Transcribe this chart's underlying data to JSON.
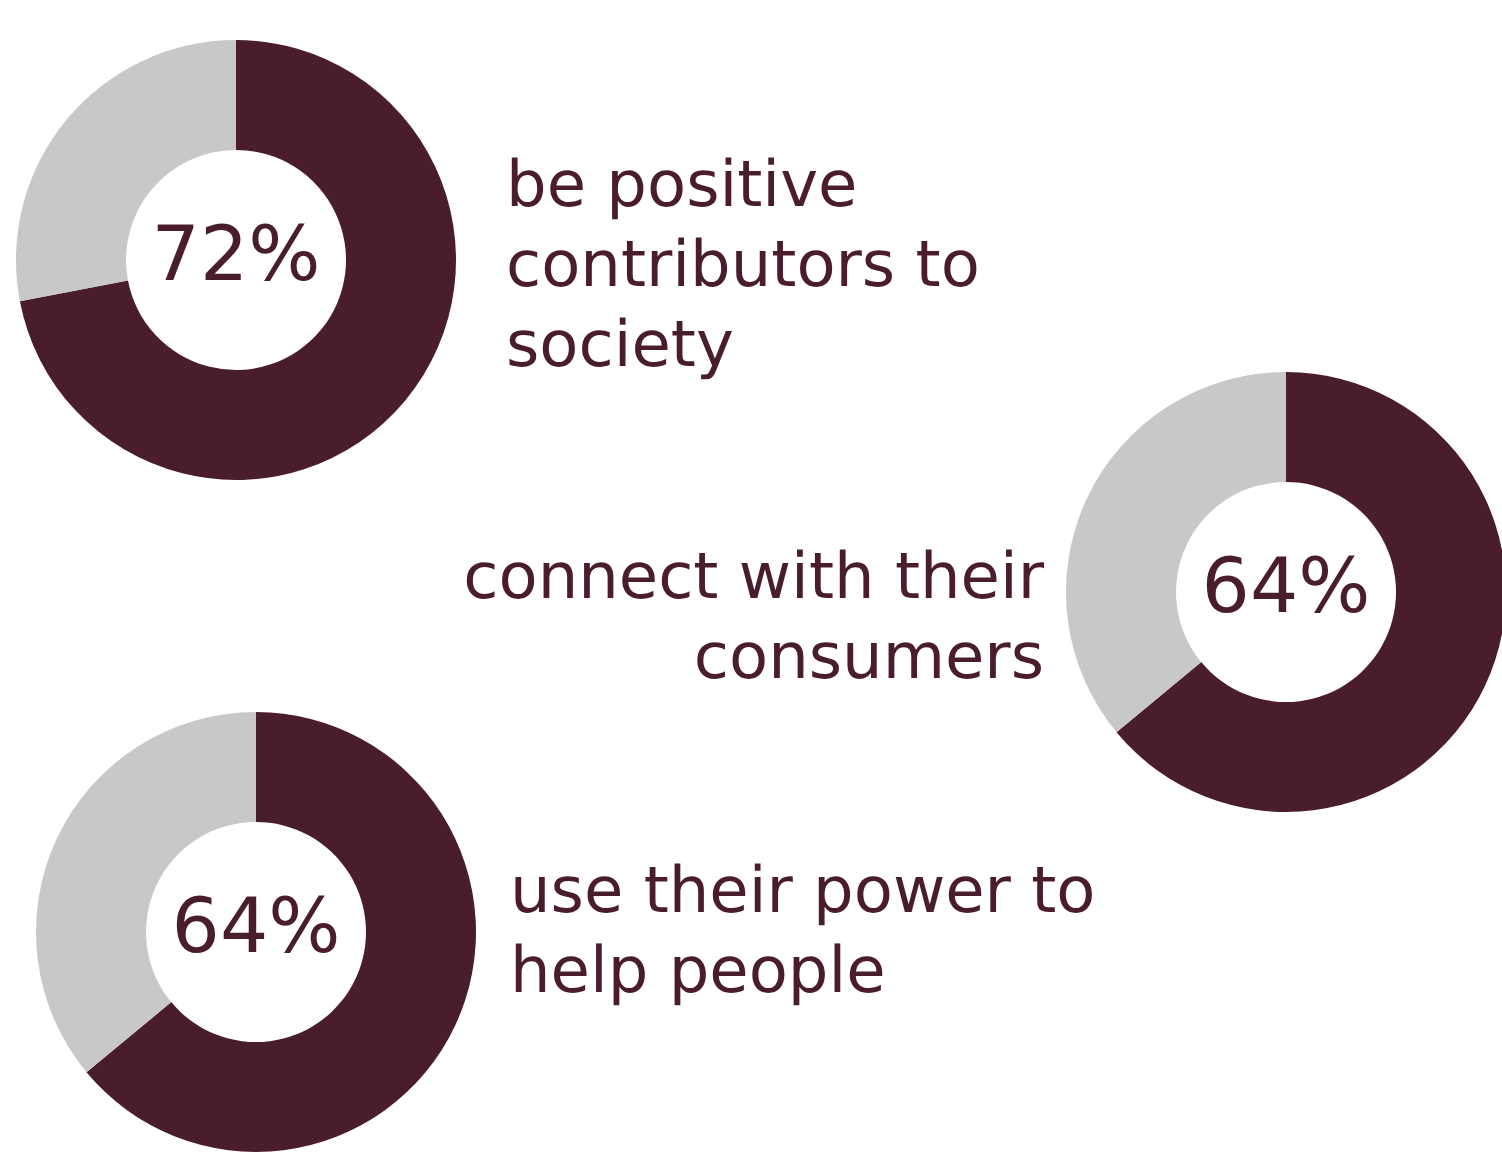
{
  "chart_data": [
    {
      "type": "donut",
      "title": "be positive contributors to society",
      "categories": [
        null,
        null
      ],
      "values": [
        72,
        28
      ],
      "colors": [
        "#4a1d2b",
        "#c8c8c8"
      ],
      "value_labels": [
        "72%",
        null
      ]
    },
    {
      "type": "donut",
      "title": "connect with their consumers",
      "categories": [
        null,
        null
      ],
      "values": [
        64,
        36
      ],
      "colors": [
        "#4a1d2b",
        "#c8c8c8"
      ],
      "value_labels": [
        "64%",
        null
      ]
    },
    {
      "type": "donut",
      "title": "use their power to help people",
      "categories": [
        null,
        null
      ],
      "values": [
        64,
        36
      ],
      "colors": [
        "#4a1d2b",
        "#c8c8c8"
      ],
      "value_labels": [
        "64%",
        null
      ]
    }
  ]
}
